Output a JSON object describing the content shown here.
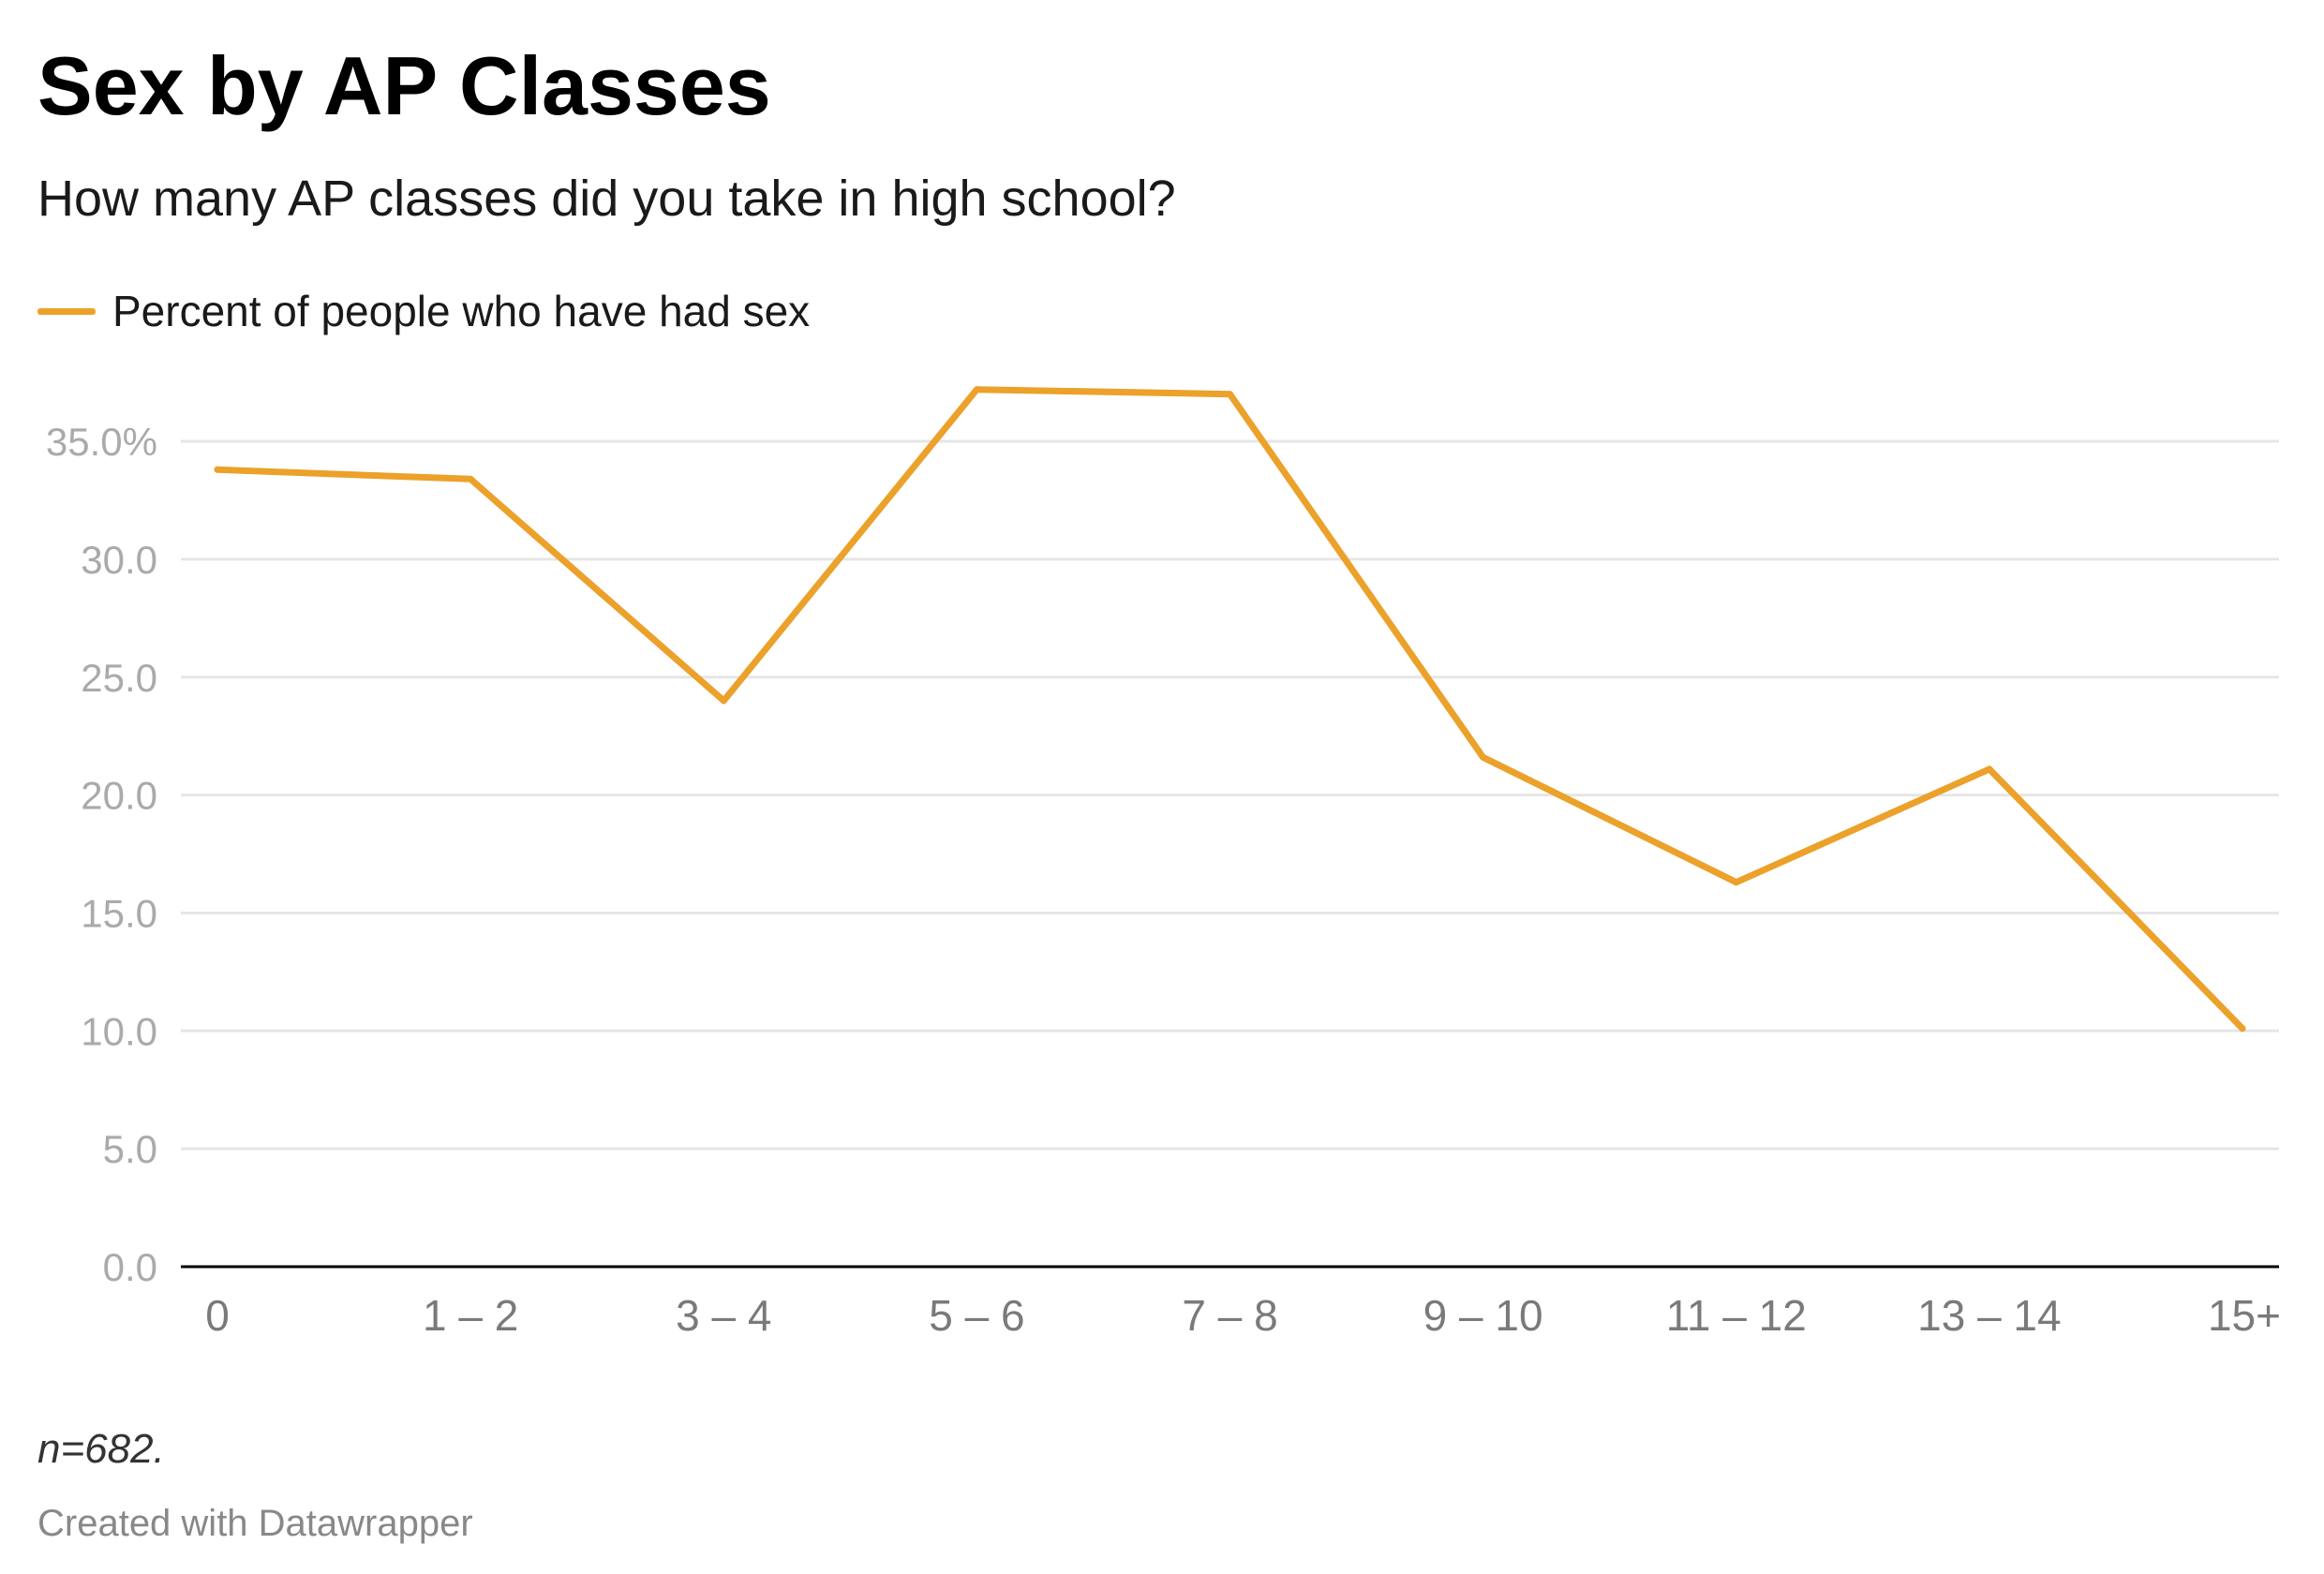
{
  "chart_data": {
    "type": "line",
    "title": "Sex by AP Classes",
    "subtitle": "How many AP classes did you take in high school?",
    "categories": [
      "0",
      "1 – 2",
      "3 – 4",
      "5 – 6",
      "7 – 8",
      "9 – 10",
      "11 – 12",
      "13 – 14",
      "15+"
    ],
    "series": [
      {
        "name": "Percent of people who have had sex",
        "values": [
          33.8,
          33.4,
          24.0,
          37.2,
          37.0,
          21.6,
          16.3,
          21.1,
          10.1
        ],
        "color": "#eba12a"
      }
    ],
    "ylim": [
      0,
      35
    ],
    "yticks": [
      0,
      5,
      10,
      15,
      20,
      25,
      30,
      35
    ],
    "ytick_labels": [
      "0.0",
      "5.0",
      "10.0",
      "15.0",
      "20.0",
      "25.0",
      "30.0",
      "35.0%"
    ],
    "xlabel": "",
    "ylabel": "",
    "grid": true,
    "legend_position": "top-left",
    "notes": "n=682.",
    "source": "Created with Datawrapper"
  },
  "colors": {
    "series_line": "#eba12a",
    "gridline": "#e6e6e6",
    "baseline": "#000000",
    "y_tick_text": "#aaaaaa",
    "x_tick_text": "#7a7a7a"
  }
}
